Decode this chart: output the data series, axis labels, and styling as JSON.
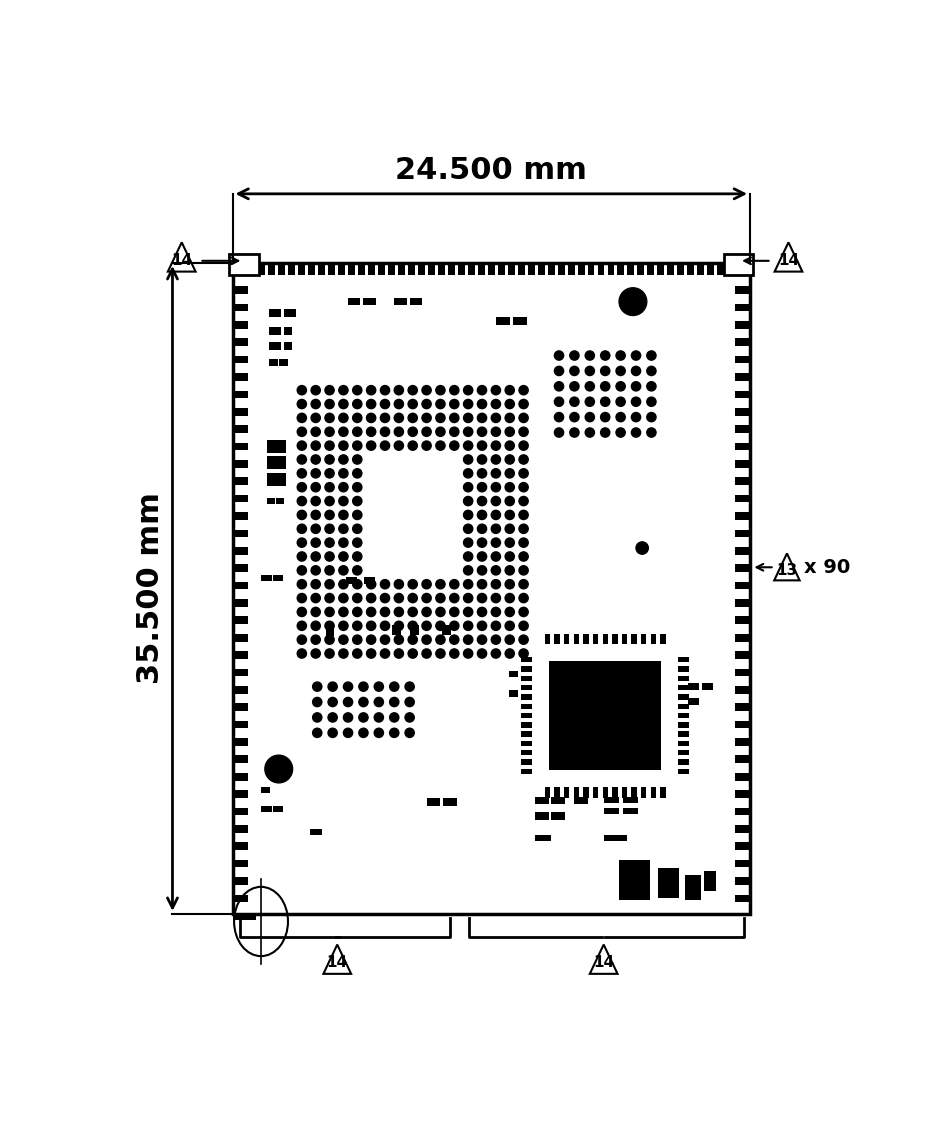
{
  "width_mm": "24.500 mm",
  "height_mm": "35.500 mm",
  "bg_color": "#ffffff",
  "line_color": "#000000",
  "dim_label_14": "14",
  "dim_label_13": "13",
  "dim_x90": "x 90"
}
